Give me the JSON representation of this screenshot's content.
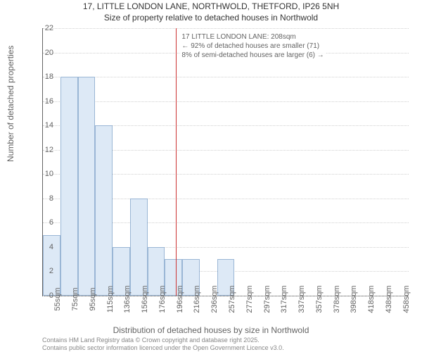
{
  "title_line1": "17, LITTLE LONDON LANE, NORTHWOLD, THETFORD, IP26 5NH",
  "title_line2": "Size of property relative to detached houses in Northwold",
  "chart": {
    "type": "histogram",
    "ylabel": "Number of detached properties",
    "xlabel": "Distribution of detached houses by size in Northwold",
    "ylim": [
      0,
      22
    ],
    "ytick_step": 2,
    "bins": [
      {
        "label": "55sqm",
        "value": 5
      },
      {
        "label": "75sqm",
        "value": 18
      },
      {
        "label": "95sqm",
        "value": 18
      },
      {
        "label": "115sqm",
        "value": 14
      },
      {
        "label": "136sqm",
        "value": 4
      },
      {
        "label": "156sqm",
        "value": 8
      },
      {
        "label": "176sqm",
        "value": 4
      },
      {
        "label": "196sqm",
        "value": 3
      },
      {
        "label": "216sqm",
        "value": 3
      },
      {
        "label": "236sqm",
        "value": 0
      },
      {
        "label": "257sqm",
        "value": 3
      },
      {
        "label": "277sqm",
        "value": 0
      },
      {
        "label": "297sqm",
        "value": 0
      },
      {
        "label": "317sqm",
        "value": 0
      },
      {
        "label": "337sqm",
        "value": 0
      },
      {
        "label": "357sqm",
        "value": 0
      },
      {
        "label": "378sqm",
        "value": 0
      },
      {
        "label": "398sqm",
        "value": 0
      },
      {
        "label": "418sqm",
        "value": 0
      },
      {
        "label": "438sqm",
        "value": 0
      },
      {
        "label": "458sqm",
        "value": 0
      }
    ],
    "bar_fill": "#dde9f6",
    "bar_stroke": "#9ab6d5",
    "grid_color": "#d0d0d0",
    "axis_color": "#636363",
    "background_color": "#ffffff",
    "label_fontsize": 12,
    "tick_fontsize": 11
  },
  "marker": {
    "x_sqm": 208,
    "color": "#cc3333",
    "annotation_line1": "17 LITTLE LONDON LANE: 208sqm",
    "annotation_line2": "← 92% of detached houses are smaller (71)",
    "annotation_line3": "8% of semi-detached houses are larger (6) →"
  },
  "footer_line1": "Contains HM Land Registry data © Crown copyright and database right 2025.",
  "footer_line2": "Contains public sector information licenced under the Open Government Licence v3.0."
}
